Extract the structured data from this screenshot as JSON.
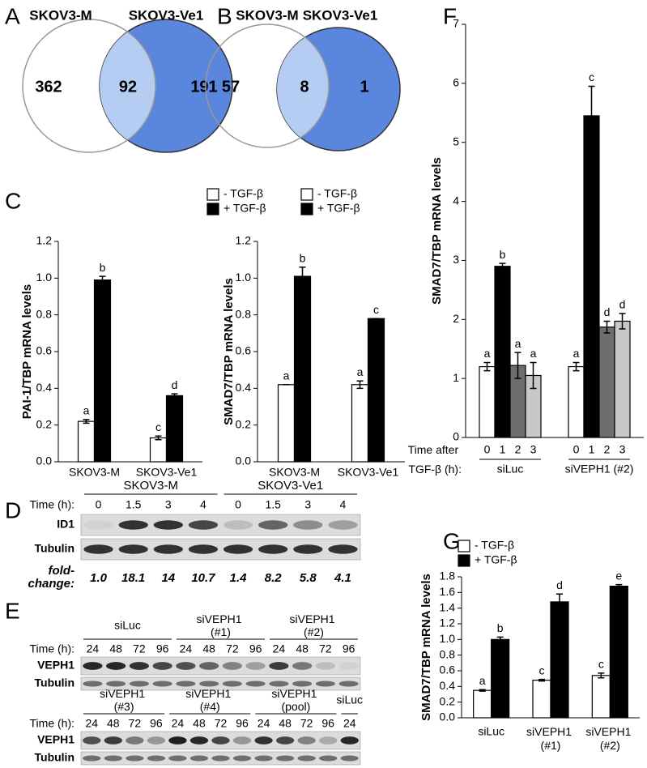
{
  "panel_labels": [
    "A",
    "B",
    "C",
    "D",
    "E",
    "F",
    "G"
  ],
  "venn": [
    {
      "left_label": "SKOV3-M",
      "right_label": "SKOV3-Ve1",
      "left_color": "#e0302f",
      "right_color": "#4a55c8",
      "left_only": 362,
      "overlap": 92,
      "right_only": 191
    },
    {
      "left_label": "SKOV3-M",
      "right_label": "SKOV3-Ve1",
      "left_color": "#e0302f",
      "right_color": "#4a55c8",
      "left_only": 57,
      "overlap": 8,
      "right_only": 1
    }
  ],
  "chart_data": [
    {
      "type": "bar",
      "ylabel": "PAI-1/TBP mRNA levels",
      "categories": [
        "SKOV3-M",
        "SKOV3-Ve1"
      ],
      "category_colors": [
        "#e0302f",
        "#4a55c8"
      ],
      "series": [
        {
          "name": "- TGF-β",
          "color": "#ffffff",
          "values": [
            0.22,
            0.13
          ],
          "errors": [
            0.01,
            0.01
          ],
          "labels": [
            "a",
            "c"
          ]
        },
        {
          "name": "+ TGF-β",
          "color": "#000000",
          "values": [
            0.99,
            0.36
          ],
          "errors": [
            0.02,
            0.01
          ],
          "labels": [
            "b",
            "d"
          ]
        }
      ],
      "ylim": [
        0,
        1.2
      ],
      "yticks": [
        {
          "value": 0,
          "label": "0.0"
        },
        0.2,
        0.4,
        0.6,
        0.8,
        {
          "value": 1,
          "label": "1.0"
        },
        1.2
      ],
      "legend": "top-right"
    },
    {
      "type": "bar",
      "ylabel": "SMAD7/TBP mRNA levels",
      "categories": [
        "SKOV3-M",
        "SKOV3-Ve1"
      ],
      "category_colors": [
        "#e0302f",
        "#4a55c8"
      ],
      "series": [
        {
          "name": "- TGF-β",
          "color": "#ffffff",
          "values": [
            0.42,
            0.42
          ],
          "errors": [
            0.0,
            0.02
          ],
          "labels": [
            "a",
            "a"
          ]
        },
        {
          "name": "+ TGF-β",
          "color": "#000000",
          "values": [
            1.01,
            0.78
          ],
          "errors": [
            0.05,
            0.0
          ],
          "labels": [
            "b",
            "c"
          ]
        }
      ],
      "ylim": [
        0,
        1.2
      ],
      "yticks": [
        {
          "value": 0,
          "label": "0.0"
        },
        0.2,
        0.4,
        0.6,
        0.8,
        {
          "value": 1,
          "label": "1.0"
        },
        1.2
      ],
      "legend": "top-right"
    },
    {
      "type": "bar",
      "ylabel": "SMAD7/TBP mRNA levels",
      "xlabel": "Time after TGF-β (h):",
      "categories": [
        "siLuc",
        "siVEPH1 (#2)"
      ],
      "series": [
        {
          "name": "0",
          "color": "#ffffff",
          "values": [
            1.2,
            1.2
          ],
          "errors": [
            0.07,
            0.07
          ],
          "labels": [
            "a",
            "a"
          ]
        },
        {
          "name": "1",
          "color": "#000000",
          "values": [
            2.9,
            5.45
          ],
          "errors": [
            0.05,
            0.5
          ],
          "labels": [
            "b",
            "c"
          ]
        },
        {
          "name": "2",
          "color": "#6e6e6e",
          "values": [
            1.22,
            1.87
          ],
          "errors": [
            0.22,
            0.1
          ],
          "labels": [
            "a",
            "d"
          ]
        },
        {
          "name": "3",
          "color": "#c8c8c8",
          "values": [
            1.05,
            1.97
          ],
          "errors": [
            0.22,
            0.13
          ],
          "labels": [
            "a",
            "d"
          ]
        }
      ],
      "ylim": [
        0,
        7
      ],
      "yticks": [
        0,
        1,
        2,
        3,
        4,
        5,
        6,
        7
      ]
    },
    {
      "type": "bar",
      "ylabel": "SMAD7/TBP mRNA levels",
      "categories": [
        "siLuc",
        "siVEPH1 (#1)",
        "siVEPH1 (#2)"
      ],
      "series": [
        {
          "name": "- TGF-β",
          "color": "#ffffff",
          "values": [
            0.35,
            0.48,
            0.54
          ],
          "errors": [
            0.01,
            0.01,
            0.03
          ],
          "labels": [
            "a",
            "c",
            "c"
          ]
        },
        {
          "name": "+ TGF-β",
          "color": "#000000",
          "values": [
            1.0,
            1.48,
            1.68
          ],
          "errors": [
            0.03,
            0.1,
            0.02
          ],
          "labels": [
            "b",
            "d",
            "e"
          ]
        }
      ],
      "ylim": [
        0,
        1.8
      ],
      "yticks": [
        {
          "value": 0,
          "label": "0.0"
        },
        0.2,
        0.4,
        0.6,
        0.8,
        {
          "value": 1,
          "label": "1.0"
        },
        1.2,
        1.4,
        1.6,
        1.8
      ],
      "legend": "top-left"
    }
  ],
  "blot_d": {
    "groups": [
      "SKOV3-M",
      "SKOV3-Ve1"
    ],
    "group_colors": [
      "#e0302f",
      "#4a55c8"
    ],
    "time_label": "Time (h):",
    "times": [
      0,
      1.5,
      3,
      4,
      0,
      1.5,
      3,
      4
    ],
    "rows": [
      "ID1",
      "Tubulin"
    ],
    "fold_label": "fold-change:",
    "fold_changes": [
      "1.0",
      "18.1",
      "14",
      "10.7",
      "1.4",
      "8.2",
      "5.8",
      "4.1"
    ]
  },
  "blot_e": {
    "time_label": "Time (h):",
    "rows": [
      "VEPH1",
      "Tubulin"
    ],
    "blocks": [
      {
        "groups": [
          "siLuc",
          "siVEPH1 (#1)",
          "siVEPH1 (#2)"
        ],
        "times": [
          24,
          48,
          72,
          96,
          24,
          48,
          72,
          96,
          24,
          48,
          72,
          96
        ]
      },
      {
        "groups": [
          "siVEPH1 (#3)",
          "siVEPH1 (#4)",
          "siVEPH1 (pool)",
          "siLuc"
        ],
        "times": [
          24,
          48,
          72,
          96,
          24,
          48,
          72,
          96,
          24,
          48,
          72,
          96,
          24
        ]
      }
    ]
  }
}
